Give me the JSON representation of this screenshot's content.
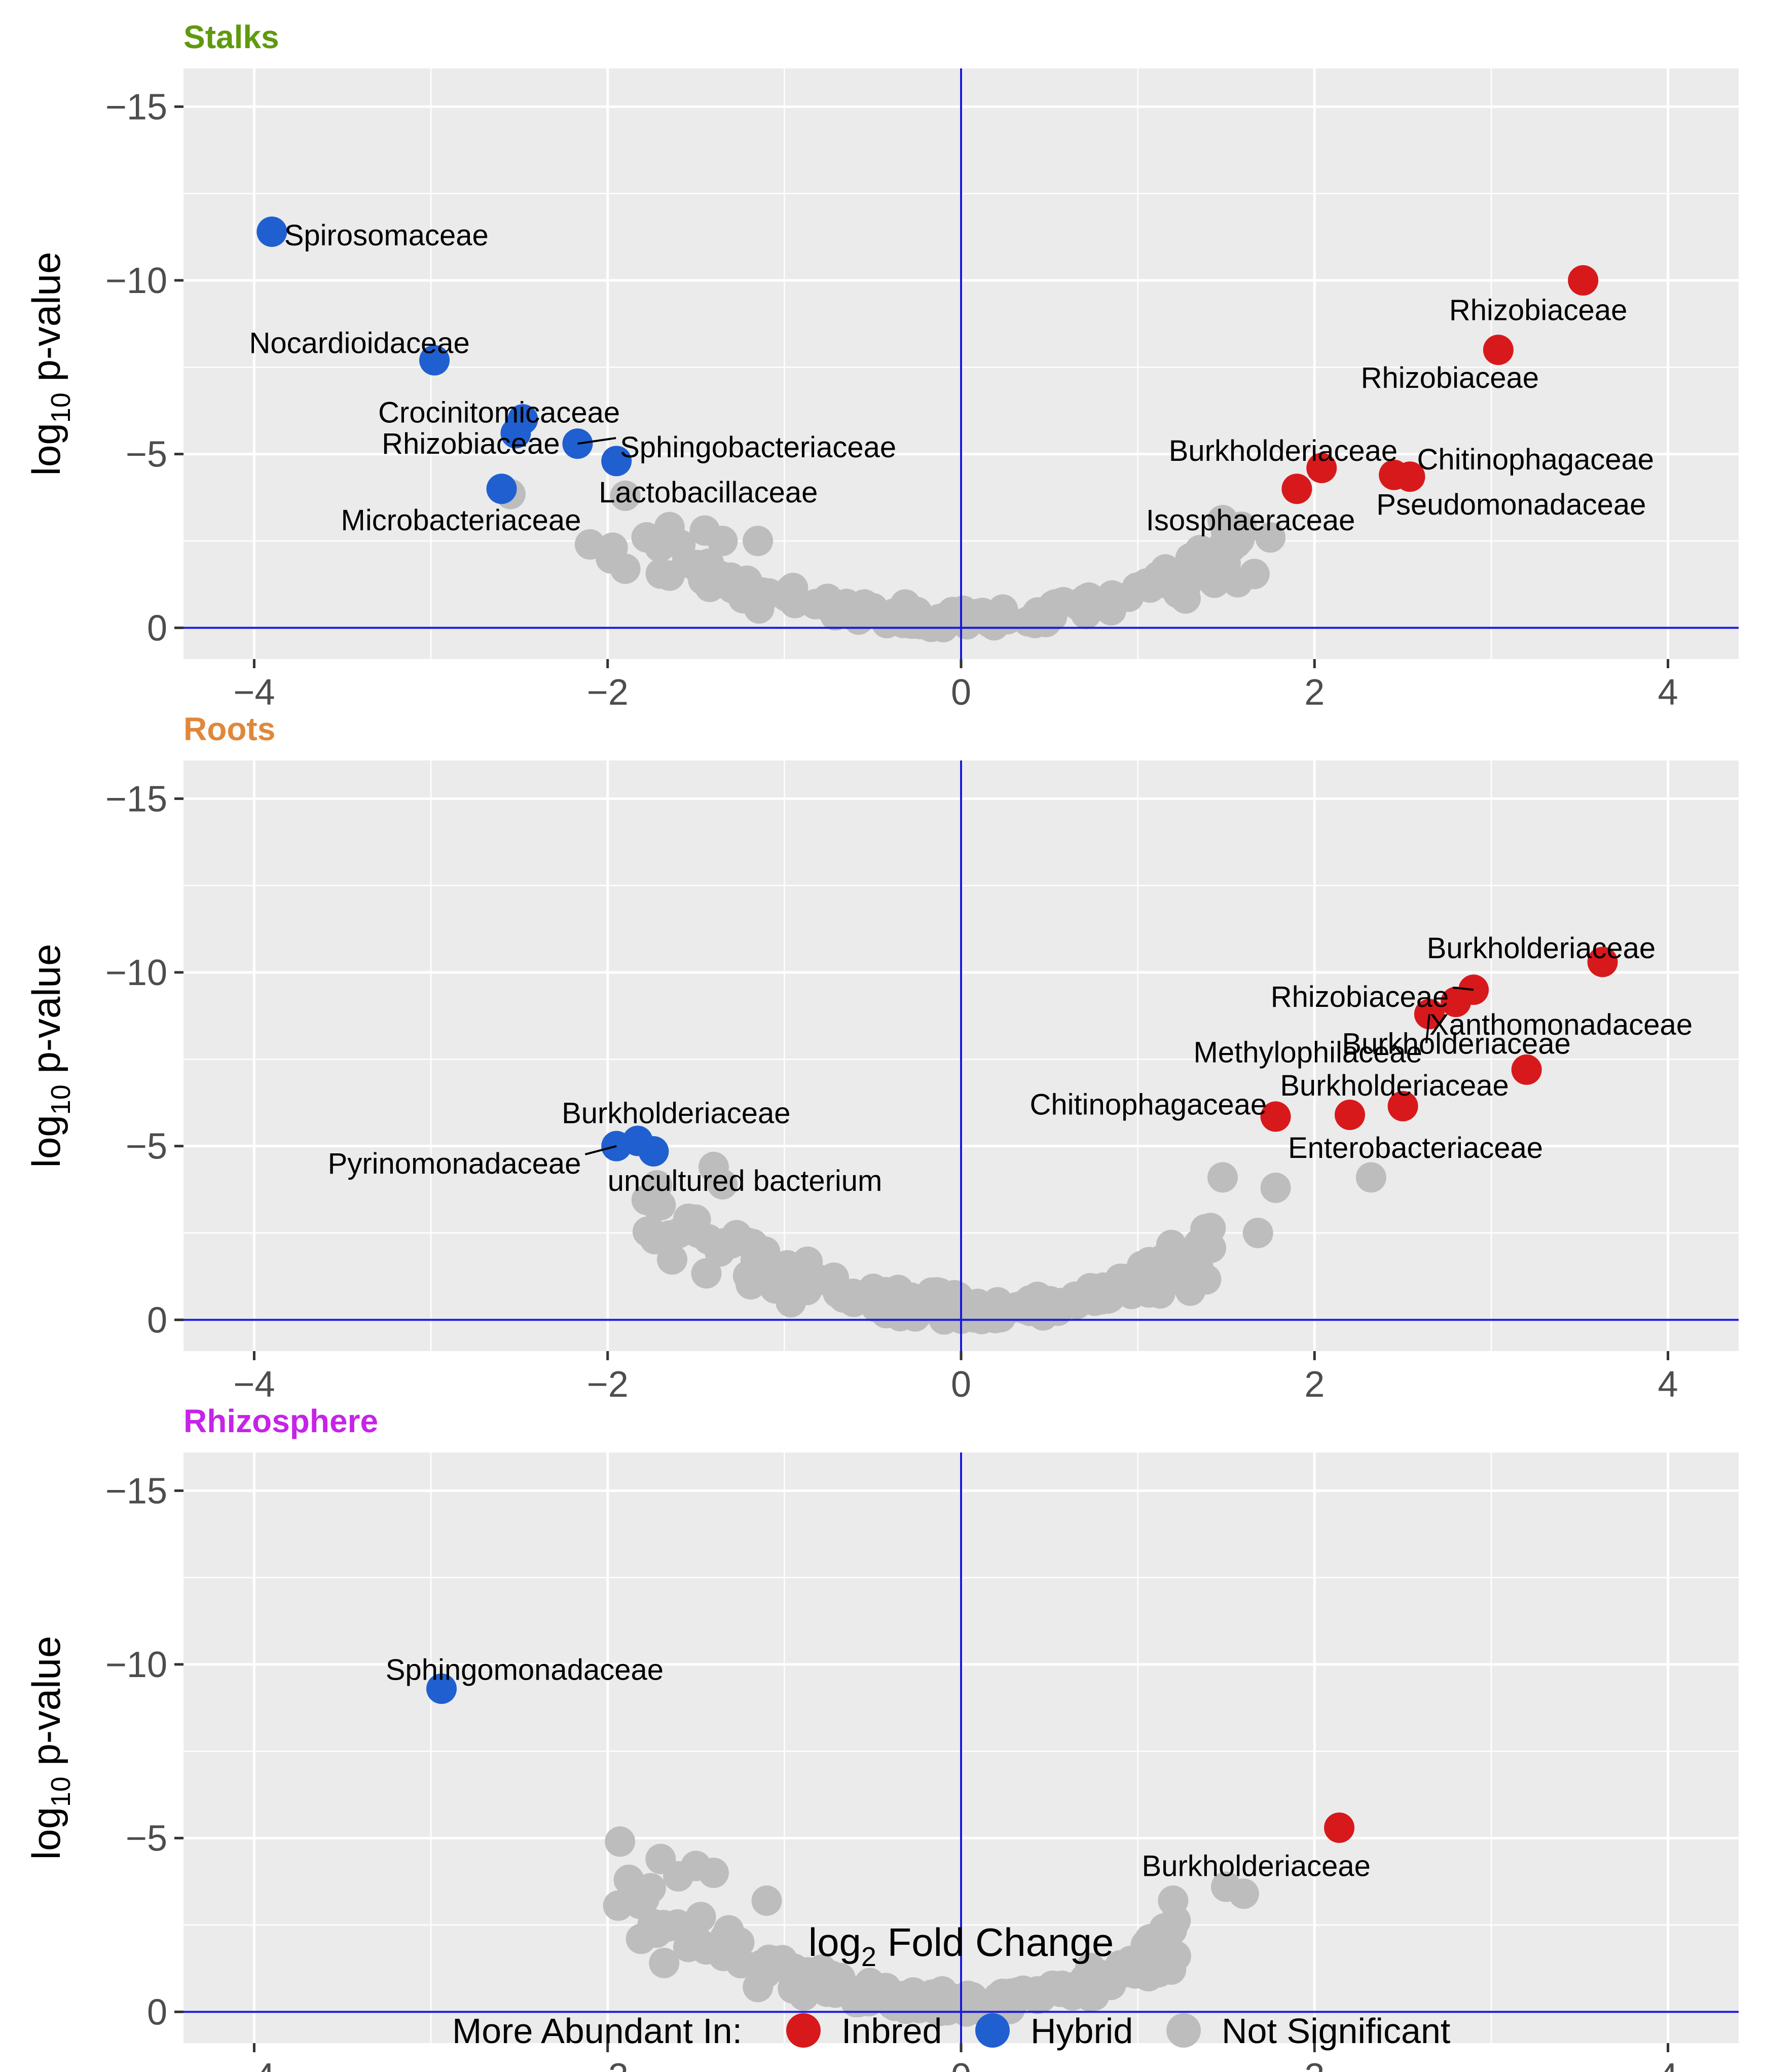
{
  "chart_data": {
    "type": "scatter",
    "xlabel": "log₂ Fold Change",
    "ylabel": "log₁₀ p-value",
    "xlim": [
      -4.4,
      4.4
    ],
    "ylim": [
      0.9,
      -16.1
    ],
    "x_ticks": [
      {
        "v": -4,
        "label": "−4"
      },
      {
        "v": -2,
        "label": "−2"
      },
      {
        "v": 0,
        "label": "0"
      },
      {
        "v": 2,
        "label": "2"
      },
      {
        "v": 4,
        "label": "4"
      }
    ],
    "y_ticks": [
      {
        "v": -15,
        "label": "−15"
      },
      {
        "v": -10,
        "label": "−10"
      },
      {
        "v": -5,
        "label": "−5"
      },
      {
        "v": 0,
        "label": "0"
      }
    ],
    "reference_lines": {
      "x": 0,
      "y": 0,
      "color": "#1a1adb"
    },
    "colors": {
      "Inbred": "#d7191c",
      "Hybrid": "#1f5fd0",
      "Not Significant": "#bdbdbd",
      "panel_bg": "#ebebeb",
      "grid": "#ffffff"
    },
    "legend": {
      "title": "More Abundant In:",
      "items": [
        "Inbred",
        "Hybrid",
        "Not Significant"
      ],
      "position": "bottom"
    },
    "panels": [
      {
        "title": "Stalks",
        "title_color": "#5e9a0e",
        "significant": [
          {
            "x": -3.9,
            "y": -11.4,
            "group": "Hybrid",
            "label": "Spirosomaceae",
            "la": "start",
            "ldx": 0.07,
            "ldy": 0.1
          },
          {
            "x": -2.98,
            "y": -7.7,
            "group": "Hybrid",
            "label": "Nocardioidaceae",
            "la": "end",
            "ldx": 0.2,
            "ldy": -0.5
          },
          {
            "x": -2.48,
            "y": -6.0,
            "group": "Hybrid",
            "label": "Crocinitomicaceae",
            "la": "end",
            "ldx": 0.55,
            "ldy": -0.2
          },
          {
            "x": -2.52,
            "y": -5.6,
            "group": "Hybrid",
            "label": "Rhizobiaceae",
            "la": "end",
            "ldx": 0.25,
            "ldy": 0.3
          },
          {
            "x": -2.17,
            "y": -5.3,
            "group": "Hybrid",
            "label": "Sphingobacteriaceae",
            "la": "start",
            "ldx": 0.24,
            "ldy": 0.1,
            "leader": true
          },
          {
            "x": -1.95,
            "y": -4.8,
            "group": "Hybrid",
            "label": "Lactobacillaceae",
            "la": "start",
            "ldx": -0.1,
            "ldy": 0.9
          },
          {
            "x": -2.6,
            "y": -4.0,
            "group": "Hybrid",
            "label": "Microbacteriaceae",
            "la": "end",
            "ldx": 0.45,
            "ldy": 0.9
          },
          {
            "x": 3.52,
            "y": -10.0,
            "group": "Inbred",
            "label": "Rhizobiaceae",
            "la": "end",
            "ldx": 0.25,
            "ldy": 0.85
          },
          {
            "x": 3.04,
            "y": -8.0,
            "group": "Inbred",
            "label": "Rhizobiaceae",
            "la": "end",
            "ldx": 0.23,
            "ldy": 0.8
          },
          {
            "x": 2.04,
            "y": -4.6,
            "group": "Inbred",
            "label": "Burkholderiaceae",
            "la": "end",
            "ldx": 0.43,
            "ldy": -0.5
          },
          {
            "x": 1.9,
            "y": -4.0,
            "group": "Inbred",
            "label": "Isosphaeraceae",
            "la": "end",
            "ldx": 0.33,
            "ldy": 0.9
          },
          {
            "x": 2.54,
            "y": -4.35,
            "group": "Inbred",
            "label": "Chitinophagaceae",
            "la": "start",
            "ldx": 0.04,
            "ldy": -0.5
          },
          {
            "x": 2.45,
            "y": -4.4,
            "group": "Inbred",
            "label": "Pseudomonadaceae",
            "la": "start",
            "ldx": -0.1,
            "ldy": 0.85
          }
        ]
      },
      {
        "title": "Roots",
        "title_color": "#e0873a",
        "significant": [
          {
            "x": 3.63,
            "y": -10.3,
            "group": "Inbred",
            "label": "Burkholderiaceae",
            "la": "end",
            "ldx": 0.3,
            "ldy": -0.4
          },
          {
            "x": 2.9,
            "y": -9.5,
            "group": "Inbred",
            "label": "Rhizobiaceae",
            "la": "end",
            "ldx": -0.14,
            "ldy": 0.2,
            "leader": true
          },
          {
            "x": 2.8,
            "y": -9.15,
            "group": "Inbred",
            "label": "Xanthomonadaceae",
            "la": "start",
            "ldx": -0.15,
            "ldy": 0.65
          },
          {
            "x": 2.65,
            "y": -8.8,
            "group": "Inbred",
            "label": "Methylophilaceae",
            "la": "end",
            "ldx": -0.04,
            "ldy": 1.1,
            "leader": true
          },
          {
            "x": 3.2,
            "y": -7.2,
            "group": "Inbred",
            "label": "Burkholderiaceae",
            "la": "end",
            "ldx": 0.25,
            "ldy": -0.75
          },
          {
            "x": 2.5,
            "y": -6.15,
            "group": "Inbred",
            "label": "Burkholderiaceae",
            "la": "end",
            "ldx": 0.6,
            "ldy": -0.6
          },
          {
            "x": 1.78,
            "y": -5.85,
            "group": "Inbred",
            "label": "Chitinophagaceae",
            "la": "end",
            "ldx": -0.05,
            "ldy": -0.35
          },
          {
            "x": 2.2,
            "y": -5.9,
            "group": "Inbred",
            "label": "Enterobacteriaceae",
            "la": "start",
            "ldx": -0.35,
            "ldy": 0.95
          },
          {
            "x": -1.95,
            "y": -5.0,
            "group": "Hybrid",
            "label": "Pyrinomonadaceae",
            "la": "end",
            "ldx": -0.2,
            "ldy": 0.5,
            "leader": true
          },
          {
            "x": -1.83,
            "y": -5.15,
            "group": "Hybrid",
            "label": "Burkholderiaceae",
            "la": "start",
            "ldx": -0.43,
            "ldy": -0.8
          },
          {
            "x": -1.74,
            "y": -4.85,
            "group": "Hybrid",
            "label": "uncultured bacterium",
            "la": "start",
            "ldx": -0.26,
            "ldy": 0.85
          }
        ]
      },
      {
        "title": "Rhizosphere",
        "title_color": "#c524e8",
        "significant": [
          {
            "x": -2.94,
            "y": -9.3,
            "group": "Hybrid",
            "label": "Sphingomonadaceae",
            "la": "middle",
            "ldx": 0.47,
            "ldy": -0.55
          },
          {
            "x": 2.14,
            "y": -5.3,
            "group": "Inbred",
            "label": "Burkholderiaceae",
            "la": "middle",
            "ldx": -0.47,
            "ldy": 1.1
          }
        ]
      }
    ]
  }
}
